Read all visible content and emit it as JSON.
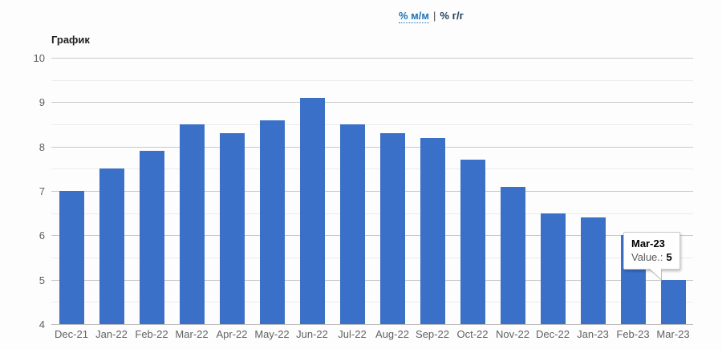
{
  "header": {
    "mm_link": "% м/м",
    "separator": "|",
    "yy_link": "% г/г"
  },
  "chart": {
    "title": "График"
  },
  "chart_data": {
    "type": "bar",
    "title": "График",
    "categories": [
      "Dec-21",
      "Jan-22",
      "Feb-22",
      "Mar-22",
      "Apr-22",
      "May-22",
      "Jun-22",
      "Jul-22",
      "Aug-22",
      "Sep-22",
      "Oct-22",
      "Nov-22",
      "Dec-22",
      "Jan-23",
      "Feb-23",
      "Mar-23"
    ],
    "values": [
      7.0,
      7.5,
      7.9,
      8.5,
      8.3,
      8.6,
      9.1,
      8.5,
      8.3,
      8.2,
      7.7,
      7.1,
      6.5,
      6.4,
      6.0,
      5.0
    ],
    "series_name": "Value.",
    "xlabel": "",
    "ylabel": "",
    "ylim": [
      4,
      10
    ],
    "y_major_step": 1,
    "y_minor_step": 0.5,
    "y_ticks": [
      "4",
      "5",
      "6",
      "7",
      "8",
      "9",
      "10"
    ],
    "grid": true,
    "legend": "none"
  },
  "tooltip": {
    "title": "Mar-23",
    "label": "Value.:",
    "value": "5"
  },
  "colors": {
    "bar": "#3b70c8",
    "link_blue": "#1f72b8",
    "active_link": "#26415e",
    "grid_major": "#c9c9c9",
    "grid_minor": "#ebebeb",
    "axis_text": "#616161",
    "tooltip_border": "#cccccc"
  }
}
